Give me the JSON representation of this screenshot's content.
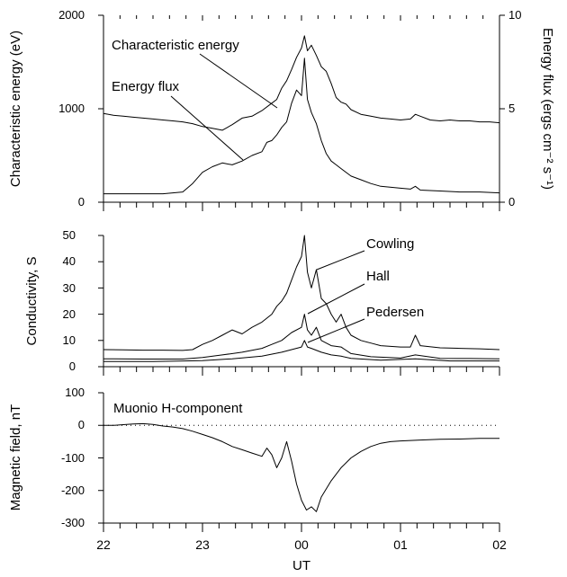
{
  "chart_data": [
    {
      "type": "line",
      "id": "energy",
      "x_unit": "UT (hours)",
      "xlim": [
        22,
        26
      ],
      "ylabel": "Characteristic energy (eV)",
      "ylabel_right": "Energy flux (ergs cm⁻² s⁻¹)",
      "ylim": [
        0,
        2000
      ],
      "yticks": [
        0,
        1000,
        2000
      ],
      "ylim_right": [
        0,
        10
      ],
      "yticks_right": [
        0,
        5,
        10
      ],
      "series": [
        {
          "name": "Characteristic energy",
          "axis": "left",
          "points": [
            [
              22.0,
              950
            ],
            [
              22.1,
              930
            ],
            [
              22.2,
              920
            ],
            [
              22.3,
              910
            ],
            [
              22.4,
              900
            ],
            [
              22.5,
              890
            ],
            [
              22.6,
              880
            ],
            [
              22.7,
              870
            ],
            [
              22.8,
              860
            ],
            [
              22.9,
              840
            ],
            [
              23.0,
              810
            ],
            [
              23.1,
              790
            ],
            [
              23.2,
              770
            ],
            [
              23.3,
              830
            ],
            [
              23.4,
              900
            ],
            [
              23.5,
              920
            ],
            [
              23.6,
              980
            ],
            [
              23.7,
              1060
            ],
            [
              23.75,
              1100
            ],
            [
              23.8,
              1220
            ],
            [
              23.85,
              1300
            ],
            [
              23.9,
              1420
            ],
            [
              23.95,
              1550
            ],
            [
              24.0,
              1650
            ],
            [
              24.03,
              1780
            ],
            [
              24.06,
              1620
            ],
            [
              24.1,
              1680
            ],
            [
              24.15,
              1570
            ],
            [
              24.2,
              1450
            ],
            [
              24.25,
              1400
            ],
            [
              24.3,
              1270
            ],
            [
              24.35,
              1120
            ],
            [
              24.4,
              1070
            ],
            [
              24.45,
              1050
            ],
            [
              24.5,
              990
            ],
            [
              24.6,
              940
            ],
            [
              24.7,
              920
            ],
            [
              24.8,
              900
            ],
            [
              24.9,
              890
            ],
            [
              25.0,
              880
            ],
            [
              25.1,
              890
            ],
            [
              25.15,
              940
            ],
            [
              25.2,
              920
            ],
            [
              25.3,
              880
            ],
            [
              25.4,
              870
            ],
            [
              25.5,
              880
            ],
            [
              25.6,
              870
            ],
            [
              25.7,
              870
            ],
            [
              25.8,
              860
            ],
            [
              25.9,
              860
            ],
            [
              26.0,
              850
            ]
          ]
        },
        {
          "name": "Energy flux",
          "axis": "right",
          "points": [
            [
              22.0,
              0.45
            ],
            [
              22.2,
              0.45
            ],
            [
              22.4,
              0.45
            ],
            [
              22.6,
              0.45
            ],
            [
              22.7,
              0.5
            ],
            [
              22.8,
              0.55
            ],
            [
              22.9,
              1.0
            ],
            [
              23.0,
              1.6
            ],
            [
              23.1,
              1.9
            ],
            [
              23.2,
              2.1
            ],
            [
              23.3,
              2.0
            ],
            [
              23.4,
              2.2
            ],
            [
              23.5,
              2.5
            ],
            [
              23.6,
              2.7
            ],
            [
              23.65,
              3.2
            ],
            [
              23.7,
              3.3
            ],
            [
              23.75,
              3.6
            ],
            [
              23.8,
              4.0
            ],
            [
              23.85,
              4.3
            ],
            [
              23.9,
              5.3
            ],
            [
              23.95,
              6.0
            ],
            [
              24.0,
              5.7
            ],
            [
              24.03,
              7.7
            ],
            [
              24.06,
              5.5
            ],
            [
              24.1,
              4.8
            ],
            [
              24.15,
              4.2
            ],
            [
              24.2,
              3.3
            ],
            [
              24.25,
              2.6
            ],
            [
              24.3,
              2.2
            ],
            [
              24.35,
              2.0
            ],
            [
              24.4,
              1.8
            ],
            [
              24.5,
              1.4
            ],
            [
              24.6,
              1.2
            ],
            [
              24.7,
              1.0
            ],
            [
              24.8,
              0.85
            ],
            [
              25.0,
              0.75
            ],
            [
              25.1,
              0.7
            ],
            [
              25.15,
              0.85
            ],
            [
              25.2,
              0.65
            ],
            [
              25.4,
              0.6
            ],
            [
              25.6,
              0.55
            ],
            [
              25.8,
              0.55
            ],
            [
              26.0,
              0.5
            ]
          ]
        }
      ],
      "annotations": [
        "Characteristic energy",
        "Energy flux"
      ]
    },
    {
      "type": "line",
      "id": "conductivity",
      "xlim": [
        22,
        26
      ],
      "ylabel": "Conductivity, S",
      "ylim": [
        0,
        50
      ],
      "yticks": [
        0,
        10,
        20,
        30,
        40,
        50
      ],
      "series": [
        {
          "name": "Cowling",
          "points": [
            [
              22.0,
              6.5
            ],
            [
              22.2,
              6.4
            ],
            [
              22.4,
              6.3
            ],
            [
              22.6,
              6.3
            ],
            [
              22.8,
              6.2
            ],
            [
              22.9,
              6.5
            ],
            [
              23.0,
              8.5
            ],
            [
              23.1,
              10.0
            ],
            [
              23.2,
              12.0
            ],
            [
              23.3,
              14.0
            ],
            [
              23.4,
              12.5
            ],
            [
              23.5,
              15.0
            ],
            [
              23.6,
              17.0
            ],
            [
              23.7,
              20.0
            ],
            [
              23.75,
              23.0
            ],
            [
              23.8,
              25.0
            ],
            [
              23.85,
              28.0
            ],
            [
              23.9,
              33.0
            ],
            [
              23.95,
              38.0
            ],
            [
              24.0,
              42.0
            ],
            [
              24.03,
              50.0
            ],
            [
              24.06,
              36.0
            ],
            [
              24.1,
              30.0
            ],
            [
              24.15,
              37.0
            ],
            [
              24.2,
              26.0
            ],
            [
              24.25,
              24.0
            ],
            [
              24.3,
              20.0
            ],
            [
              24.35,
              17.0
            ],
            [
              24.4,
              20.0
            ],
            [
              24.45,
              15.0
            ],
            [
              24.5,
              12.0
            ],
            [
              24.6,
              10.0
            ],
            [
              24.7,
              9.0
            ],
            [
              24.8,
              8.0
            ],
            [
              25.0,
              7.5
            ],
            [
              25.1,
              7.5
            ],
            [
              25.15,
              12.0
            ],
            [
              25.2,
              8.0
            ],
            [
              25.4,
              7.2
            ],
            [
              25.6,
              7.0
            ],
            [
              25.8,
              6.8
            ],
            [
              26.0,
              6.5
            ]
          ]
        },
        {
          "name": "Hall",
          "points": [
            [
              22.0,
              3.0
            ],
            [
              22.4,
              2.9
            ],
            [
              22.8,
              2.9
            ],
            [
              23.0,
              3.5
            ],
            [
              23.2,
              4.5
            ],
            [
              23.4,
              5.5
            ],
            [
              23.6,
              7.0
            ],
            [
              23.7,
              8.5
            ],
            [
              23.8,
              10.0
            ],
            [
              23.9,
              13.0
            ],
            [
              24.0,
              15.0
            ],
            [
              24.03,
              20.0
            ],
            [
              24.06,
              14.0
            ],
            [
              24.1,
              12.0
            ],
            [
              24.15,
              15.0
            ],
            [
              24.2,
              10.0
            ],
            [
              24.3,
              8.0
            ],
            [
              24.4,
              7.5
            ],
            [
              24.5,
              5.0
            ],
            [
              24.7,
              3.8
            ],
            [
              25.0,
              3.3
            ],
            [
              25.15,
              4.5
            ],
            [
              25.4,
              3.2
            ],
            [
              25.7,
              3.1
            ],
            [
              26.0,
              3.0
            ]
          ]
        },
        {
          "name": "Pedersen",
          "points": [
            [
              22.0,
              2.0
            ],
            [
              22.5,
              2.0
            ],
            [
              23.0,
              2.3
            ],
            [
              23.3,
              3.0
            ],
            [
              23.6,
              4.0
            ],
            [
              23.8,
              5.5
            ],
            [
              23.9,
              6.5
            ],
            [
              24.0,
              7.5
            ],
            [
              24.03,
              10.0
            ],
            [
              24.06,
              7.5
            ],
            [
              24.1,
              7.0
            ],
            [
              24.2,
              5.5
            ],
            [
              24.3,
              4.5
            ],
            [
              24.4,
              4.0
            ],
            [
              24.5,
              3.2
            ],
            [
              24.8,
              2.5
            ],
            [
              25.15,
              3.0
            ],
            [
              25.5,
              2.2
            ],
            [
              26.0,
              2.2
            ]
          ]
        }
      ],
      "annotations": [
        "Cowling",
        "Hall",
        "Pedersen"
      ]
    },
    {
      "type": "line",
      "id": "magnetic",
      "xlim": [
        22,
        26
      ],
      "xlabel": "UT",
      "xticks": [
        22,
        23,
        24,
        25,
        26
      ],
      "xtick_labels": [
        "22",
        "23",
        "00",
        "01",
        "02"
      ],
      "ylabel": "Magnetic field, nT",
      "ylim": [
        -300,
        100
      ],
      "yticks": [
        -300,
        -200,
        -100,
        0,
        100
      ],
      "zero_line": "dotted",
      "series": [
        {
          "name": "Muonio H-component",
          "points": [
            [
              22.0,
              0
            ],
            [
              22.1,
              0
            ],
            [
              22.2,
              2
            ],
            [
              22.3,
              4
            ],
            [
              22.4,
              5
            ],
            [
              22.5,
              3
            ],
            [
              22.6,
              -2
            ],
            [
              22.7,
              -5
            ],
            [
              22.8,
              -10
            ],
            [
              22.9,
              -18
            ],
            [
              23.0,
              -28
            ],
            [
              23.1,
              -38
            ],
            [
              23.2,
              -50
            ],
            [
              23.3,
              -65
            ],
            [
              23.4,
              -75
            ],
            [
              23.5,
              -85
            ],
            [
              23.6,
              -95
            ],
            [
              23.65,
              -70
            ],
            [
              23.7,
              -90
            ],
            [
              23.75,
              -130
            ],
            [
              23.8,
              -100
            ],
            [
              23.85,
              -50
            ],
            [
              23.9,
              -110
            ],
            [
              23.95,
              -180
            ],
            [
              24.0,
              -230
            ],
            [
              24.05,
              -260
            ],
            [
              24.1,
              -250
            ],
            [
              24.15,
              -265
            ],
            [
              24.2,
              -220
            ],
            [
              24.3,
              -170
            ],
            [
              24.4,
              -130
            ],
            [
              24.5,
              -100
            ],
            [
              24.6,
              -80
            ],
            [
              24.7,
              -65
            ],
            [
              24.8,
              -55
            ],
            [
              24.9,
              -50
            ],
            [
              25.0,
              -48
            ],
            [
              25.2,
              -45
            ],
            [
              25.4,
              -43
            ],
            [
              25.6,
              -42
            ],
            [
              25.8,
              -40
            ],
            [
              26.0,
              -40
            ]
          ]
        }
      ],
      "annotations": [
        "Muonio H-component"
      ]
    }
  ]
}
